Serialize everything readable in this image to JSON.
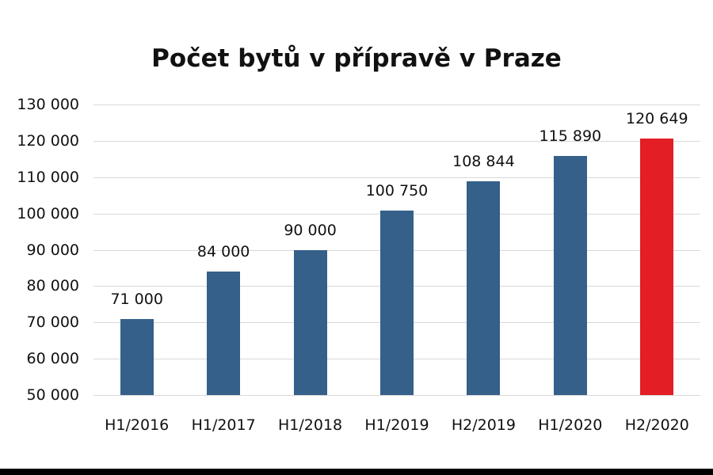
{
  "chart_data": {
    "type": "bar",
    "title": "Počet bytů v přípravě v Praze",
    "xlabel": "",
    "ylabel": "",
    "categories": [
      "H1/2016",
      "H1/2017",
      "H1/2018",
      "H1/2019",
      "H2/2019",
      "H1/2020",
      "H2/2020"
    ],
    "values": [
      71000,
      84000,
      90000,
      100750,
      108844,
      115890,
      120649
    ],
    "data_labels": [
      "71 000",
      "84 000",
      "90 000",
      "100 750",
      "108 844",
      "115 890",
      "120 649"
    ],
    "ylim": [
      50000,
      130000
    ],
    "yticks": [
      50000,
      60000,
      70000,
      80000,
      90000,
      100000,
      110000,
      120000,
      130000
    ],
    "ytick_labels": [
      "50 000",
      "60 000",
      "70 000",
      "80 000",
      "90 000",
      "100 000",
      "110 000",
      "120 000",
      "130 000"
    ],
    "grid": true,
    "legend": null,
    "colors": {
      "default_bar": "#34608a",
      "highlight_bar": "#e31e24",
      "highlight_index": 6,
      "gridline": "#d9d9d9",
      "footer_band": "#000000"
    }
  }
}
